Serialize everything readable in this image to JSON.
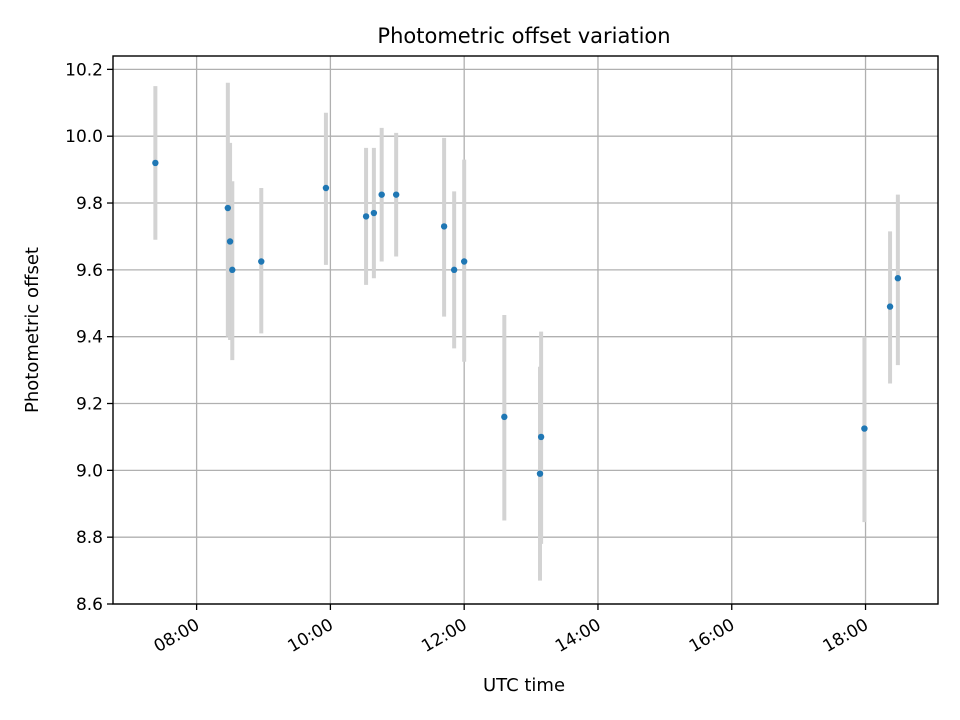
{
  "chart_data": {
    "type": "scatter",
    "title": "Photometric offset variation",
    "xlabel": "UTC time",
    "ylabel": "Photometric offset",
    "x_axis_type": "time",
    "xlim": [
      "06:45",
      "19:05"
    ],
    "ylim": [
      8.6,
      10.24
    ],
    "xticks": [
      "08:00",
      "10:00",
      "12:00",
      "14:00",
      "16:00",
      "18:00"
    ],
    "yticks": [
      "8.6",
      "8.8",
      "9.0",
      "9.2",
      "9.4",
      "9.6",
      "9.8",
      "10.0",
      "10.2"
    ],
    "grid": true,
    "series": [
      {
        "marker_color": "#1f77b4",
        "errorbar_color": "#d3d3d3",
        "points": [
          {
            "x": "07:23",
            "y": 9.92,
            "lo": 9.69,
            "hi": 10.15
          },
          {
            "x": "08:28",
            "y": 9.785,
            "lo": 9.4,
            "hi": 10.16
          },
          {
            "x": "08:30",
            "y": 9.685,
            "lo": 9.39,
            "hi": 9.98
          },
          {
            "x": "08:32",
            "y": 9.6,
            "lo": 9.33,
            "hi": 9.865
          },
          {
            "x": "08:58",
            "y": 9.625,
            "lo": 9.41,
            "hi": 9.845
          },
          {
            "x": "09:56",
            "y": 9.845,
            "lo": 9.615,
            "hi": 10.07
          },
          {
            "x": "10:32",
            "y": 9.76,
            "lo": 9.555,
            "hi": 9.965
          },
          {
            "x": "10:39",
            "y": 9.77,
            "lo": 9.575,
            "hi": 9.965
          },
          {
            "x": "10:46",
            "y": 9.825,
            "lo": 9.625,
            "hi": 10.025
          },
          {
            "x": "10:59",
            "y": 9.825,
            "lo": 9.64,
            "hi": 10.01
          },
          {
            "x": "11:42",
            "y": 9.73,
            "lo": 9.46,
            "hi": 9.995
          },
          {
            "x": "11:51",
            "y": 9.6,
            "lo": 9.365,
            "hi": 9.835
          },
          {
            "x": "12:00",
            "y": 9.625,
            "lo": 9.325,
            "hi": 9.93
          },
          {
            "x": "12:36",
            "y": 9.16,
            "lo": 8.85,
            "hi": 9.465
          },
          {
            "x": "13:09",
            "y": 9.1,
            "lo": 8.78,
            "hi": 9.415
          },
          {
            "x": "13:08",
            "y": 8.99,
            "lo": 8.67,
            "hi": 9.31
          },
          {
            "x": "17:59",
            "y": 9.125,
            "lo": 8.845,
            "hi": 9.4
          },
          {
            "x": "18:22",
            "y": 9.49,
            "lo": 9.26,
            "hi": 9.715
          },
          {
            "x": "18:29",
            "y": 9.575,
            "lo": 9.315,
            "hi": 9.825
          }
        ]
      }
    ]
  }
}
